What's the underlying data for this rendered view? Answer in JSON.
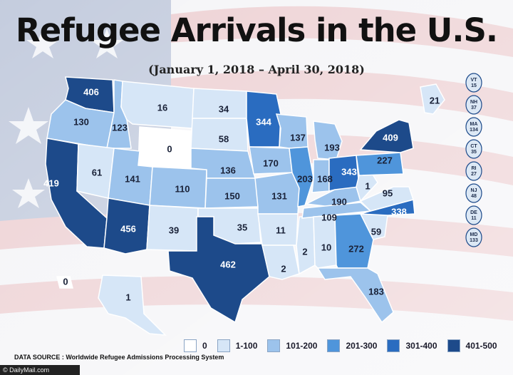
{
  "title": "Refugee Arrivals in the U.S.",
  "subtitle": "(January 1, 2018 – April 30, 2018)",
  "colors": {
    "0": "#ffffff",
    "1-100": "#d6e6f7",
    "101-200": "#9cc3ec",
    "201-300": "#4f95db",
    "301-400": "#2a6cc0",
    "401-500": "#1d4a8a"
  },
  "states": [
    {
      "name": "WA",
      "value": 406
    },
    {
      "name": "OR",
      "value": 130
    },
    {
      "name": "CA",
      "value": 419
    },
    {
      "name": "ID",
      "value": 123
    },
    {
      "name": "NV",
      "value": 61
    },
    {
      "name": "MT",
      "value": 16
    },
    {
      "name": "WY",
      "value": 0
    },
    {
      "name": "UT",
      "value": 141
    },
    {
      "name": "AZ",
      "value": 456
    },
    {
      "name": "CO",
      "value": 110
    },
    {
      "name": "NM",
      "value": 39
    },
    {
      "name": "ND",
      "value": 34
    },
    {
      "name": "SD",
      "value": 58
    },
    {
      "name": "NE",
      "value": 136
    },
    {
      "name": "KS",
      "value": 150
    },
    {
      "name": "OK",
      "value": 35
    },
    {
      "name": "TX",
      "value": 462
    },
    {
      "name": "MN",
      "value": 344
    },
    {
      "name": "IA",
      "value": 170
    },
    {
      "name": "MO",
      "value": 131
    },
    {
      "name": "AR",
      "value": 11
    },
    {
      "name": "LA",
      "value": 2
    },
    {
      "name": "WI",
      "value": 137
    },
    {
      "name": "IL",
      "value": 203
    },
    {
      "name": "MS",
      "value": 2
    },
    {
      "name": "MI",
      "value": 193
    },
    {
      "name": "IN",
      "value": 168
    },
    {
      "name": "KY",
      "value": 190
    },
    {
      "name": "TN",
      "value": 109
    },
    {
      "name": "AL",
      "value": 10
    },
    {
      "name": "OH",
      "value": 343
    },
    {
      "name": "GA",
      "value": 272
    },
    {
      "name": "FL",
      "value": 183
    },
    {
      "name": "SC",
      "value": 59
    },
    {
      "name": "NC",
      "value": 338
    },
    {
      "name": "VA",
      "value": 95
    },
    {
      "name": "WV",
      "value": 1
    },
    {
      "name": "PA",
      "value": 227
    },
    {
      "name": "NY",
      "value": 409
    },
    {
      "name": "ME",
      "value": 21
    },
    {
      "name": "AK",
      "value": 1
    },
    {
      "name": "HI",
      "value": 0
    }
  ],
  "northeast": [
    {
      "abbr": "VT",
      "value": "15"
    },
    {
      "abbr": "NH",
      "value": "37"
    },
    {
      "abbr": "MA",
      "value": "134"
    },
    {
      "abbr": "CT",
      "value": "35"
    },
    {
      "abbr": "RI",
      "value": "27"
    },
    {
      "abbr": "NJ",
      "value": "48"
    },
    {
      "abbr": "DE",
      "value": "11"
    },
    {
      "abbr": "MD",
      "value": "133"
    }
  ],
  "legend": [
    {
      "label": "0",
      "color": "#ffffff"
    },
    {
      "label": "1-100",
      "color": "#d6e6f7"
    },
    {
      "label": "101-200",
      "color": "#9cc3ec"
    },
    {
      "label": "201-300",
      "color": "#4f95db"
    },
    {
      "label": "301-400",
      "color": "#2a6cc0"
    },
    {
      "label": "401-500",
      "color": "#1d4a8a"
    }
  ],
  "source": "DATA SOURCE : Worldwide Refugee Admissions Processing System",
  "credit": "© DailyMail.com"
}
